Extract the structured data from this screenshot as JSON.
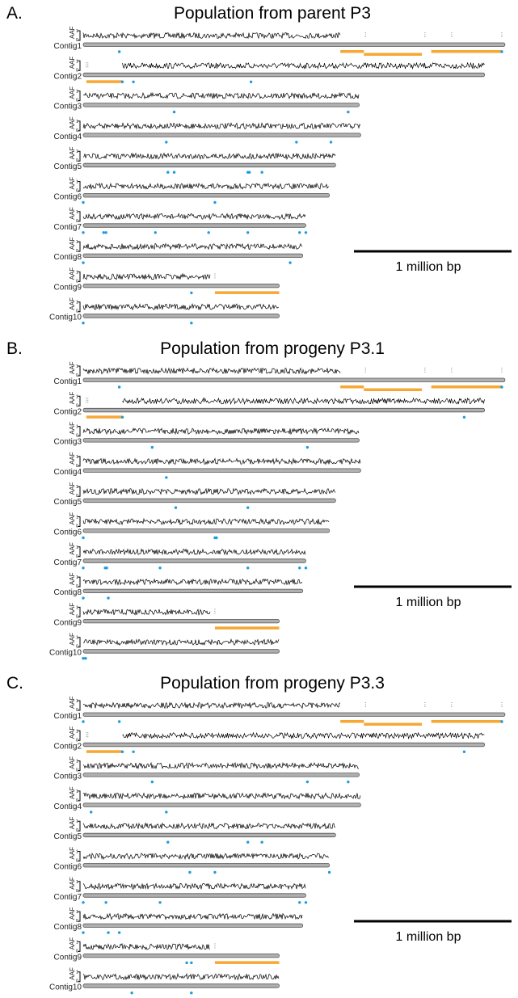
{
  "chart_data": {
    "type": "genome-track",
    "units": "Mbp",
    "scale_bar": {
      "value": 1,
      "label": "1 million bp"
    },
    "track_label": "AAF",
    "aaf_ticks": [
      "1",
      "0"
    ],
    "colors": {
      "trace": "#000000",
      "contig_bar": "#b0b0b0",
      "deletion": "#f7a733",
      "variant": "#1e9be0"
    },
    "contigs": [
      {
        "name": "Contig1",
        "length": 2.69,
        "coverage": [
          [
            0,
            1.64
          ]
        ],
        "sparse": [
          1.8,
          2.18,
          2.35,
          2.67
        ]
      },
      {
        "name": "Contig2",
        "length": 2.56,
        "coverage": [
          [
            0.25,
            2.56
          ]
        ],
        "sparse": [
          0.02,
          0.03
        ]
      },
      {
        "name": "Contig3",
        "length": 1.76,
        "coverage": [
          [
            0,
            1.76
          ]
        ],
        "sparse": []
      },
      {
        "name": "Contig4",
        "length": 1.77,
        "coverage": [
          [
            0,
            1.77
          ]
        ],
        "sparse": []
      },
      {
        "name": "Contig5",
        "length": 1.61,
        "coverage": [
          [
            0,
            1.61
          ]
        ],
        "sparse": []
      },
      {
        "name": "Contig6",
        "length": 1.57,
        "coverage": [
          [
            0,
            1.57
          ]
        ],
        "sparse": []
      },
      {
        "name": "Contig7",
        "length": 1.42,
        "coverage": [
          [
            0,
            1.42
          ]
        ],
        "sparse": []
      },
      {
        "name": "Contig8",
        "length": 1.4,
        "coverage": [
          [
            0,
            1.4
          ]
        ],
        "sparse": []
      },
      {
        "name": "Contig9",
        "length": 1.25,
        "coverage": [
          [
            0,
            0.81
          ]
        ],
        "sparse": [
          0.84
        ]
      },
      {
        "name": "Contig10",
        "length": 1.25,
        "coverage": [
          [
            0,
            1.25
          ]
        ],
        "sparse": []
      }
    ],
    "deletions": [
      {
        "contig": 0,
        "start": 1.64,
        "end": 1.79,
        "level": 0
      },
      {
        "contig": 0,
        "start": 1.79,
        "end": 2.16,
        "level": 1
      },
      {
        "contig": 0,
        "start": 2.22,
        "end": 2.67,
        "level": 0
      },
      {
        "contig": 1,
        "start": 0.02,
        "end": 0.25,
        "level": 0
      },
      {
        "contig": 8,
        "start": 0.84,
        "end": 1.25,
        "level": 0
      }
    ],
    "panels": [
      {
        "letter": "A.",
        "title": "Population from parent P3",
        "variants": [
          [
            0.23,
            2.67
          ],
          [
            0.25,
            0.32,
            1.07
          ],
          [
            0.58,
            1.69
          ],
          [
            0.53,
            1.36,
            1.58
          ],
          [
            0.54,
            0.58,
            1.05,
            1.06,
            1.14
          ],
          [
            0.0,
            0.84
          ],
          [
            0.0,
            0.13,
            0.145,
            0.46,
            0.8,
            1.05,
            1.38,
            1.42
          ],
          [
            0.0,
            1.32
          ],
          [
            0.69
          ],
          [
            0.0,
            0.69
          ]
        ]
      },
      {
        "letter": "B.",
        "title": "Population from progeny P3.1",
        "variants": [
          [
            0.23,
            2.67
          ],
          [
            0.25,
            2.43
          ],
          [
            0.44,
            1.43
          ],
          [
            0.53
          ],
          [
            0.59,
            1.05
          ],
          [
            0.0,
            0.84,
            0.85
          ],
          [
            0.0,
            0.14,
            0.15,
            0.49,
            1.05,
            1.38,
            1.42
          ],
          [
            0.0,
            0.16
          ],
          [],
          [
            0.0,
            0.015
          ]
        ]
      },
      {
        "letter": "C.",
        "title": "Population from progeny P3.3",
        "variants": [
          [
            0.0,
            0.23,
            2.67
          ],
          [
            0.25,
            0.32,
            2.43
          ],
          [
            0.44,
            1.43,
            1.69
          ],
          [
            0.05,
            0.53
          ],
          [
            0.54,
            1.05,
            1.14
          ],
          [
            0.68,
            0.84,
            1.57
          ],
          [
            0.0,
            0.145,
            0.49,
            1.38,
            1.42
          ],
          [
            0.0,
            0.16,
            0.23
          ],
          [
            0.66,
            0.69
          ],
          [
            0.31,
            0.69
          ]
        ]
      }
    ]
  }
}
